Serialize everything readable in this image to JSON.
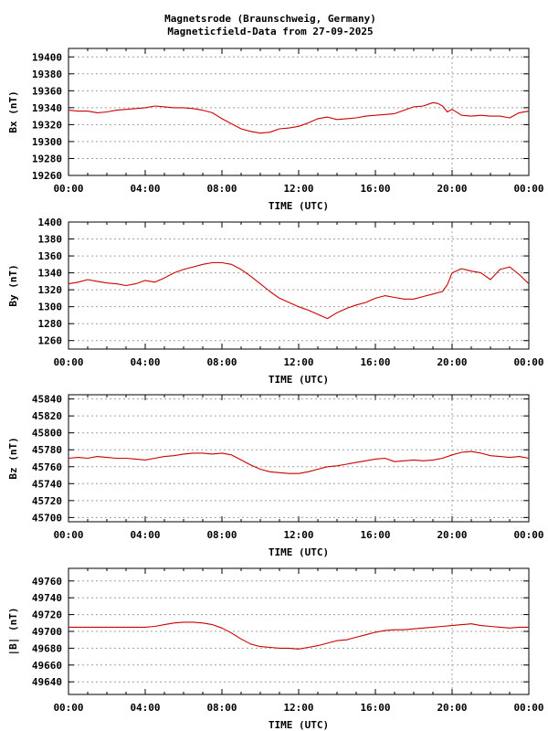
{
  "title_line1": "Magnetsrode (Braunschweig, Germany)",
  "title_line2": "Magneticfield-Data from 27-09-2025",
  "line_color": "#cc0000",
  "chart_data": [
    {
      "type": "line",
      "ylabel": "Bx (nT)",
      "xlabel": "TIME (UTC)",
      "xlim": [
        0,
        24
      ],
      "xticks": [
        "00:00",
        "04:00",
        "08:00",
        "12:00",
        "16:00",
        "20:00",
        "00:00"
      ],
      "ylim": [
        19260,
        19410
      ],
      "yticks": [
        19260,
        19280,
        19300,
        19320,
        19340,
        19360,
        19380,
        19400
      ],
      "x": [
        0,
        0.5,
        1,
        1.5,
        2,
        2.5,
        3,
        3.5,
        4,
        4.5,
        5,
        5.5,
        6,
        6.5,
        7,
        7.5,
        8,
        8.5,
        9,
        9.5,
        10,
        10.5,
        11,
        11.5,
        12,
        12.5,
        13,
        13.5,
        14,
        14.5,
        15,
        15.5,
        16,
        16.5,
        17,
        17.5,
        18,
        18.5,
        19,
        19.25,
        19.5,
        19.75,
        20,
        20.5,
        21,
        21.5,
        22,
        22.5,
        23,
        23.5,
        24
      ],
      "y": [
        19337,
        19336,
        19336,
        19334,
        19335,
        19337,
        19338,
        19339,
        19340,
        19342,
        19341,
        19340,
        19340,
        19339,
        19337,
        19334,
        19327,
        19321,
        19315,
        19312,
        19310,
        19311,
        19315,
        19316,
        19318,
        19322,
        19327,
        19329,
        19326,
        19327,
        19328,
        19330,
        19331,
        19332,
        19333,
        19337,
        19341,
        19342,
        19346,
        19345,
        19342,
        19335,
        19338,
        19331,
        19330,
        19331,
        19330,
        19330,
        19328,
        19334,
        19336
      ]
    },
    {
      "type": "line",
      "ylabel": "By (nT)",
      "xlabel": "TIME (UTC)",
      "xlim": [
        0,
        24
      ],
      "xticks": [
        "00:00",
        "04:00",
        "08:00",
        "12:00",
        "16:00",
        "20:00",
        "00:00"
      ],
      "ylim": [
        1250,
        1400
      ],
      "yticks": [
        1260,
        1280,
        1300,
        1320,
        1340,
        1360,
        1380,
        1400
      ],
      "x": [
        0,
        0.5,
        1,
        1.5,
        2,
        2.5,
        3,
        3.5,
        4,
        4.5,
        5,
        5.5,
        6,
        6.5,
        7,
        7.5,
        8,
        8.5,
        9,
        9.5,
        10,
        10.5,
        11,
        11.5,
        12,
        12.5,
        13,
        13.5,
        14,
        14.5,
        15,
        15.5,
        16,
        16.5,
        17,
        17.5,
        18,
        18.5,
        19,
        19.5,
        19.75,
        20,
        20.5,
        21,
        21.5,
        22,
        22.5,
        23,
        23.5,
        24
      ],
      "y": [
        1327,
        1329,
        1332,
        1330,
        1328,
        1327,
        1325,
        1327,
        1331,
        1329,
        1334,
        1340,
        1344,
        1347,
        1350,
        1352,
        1352,
        1350,
        1344,
        1336,
        1327,
        1318,
        1310,
        1305,
        1300,
        1296,
        1291,
        1286,
        1293,
        1298,
        1302,
        1305,
        1310,
        1313,
        1311,
        1309,
        1309,
        1312,
        1315,
        1318,
        1326,
        1340,
        1345,
        1342,
        1340,
        1332,
        1344,
        1347,
        1338,
        1327
      ]
    },
    {
      "type": "line",
      "ylabel": "Bz (nT)",
      "xlabel": "TIME (UTC)",
      "xlim": [
        0,
        24
      ],
      "xticks": [
        "00:00",
        "04:00",
        "08:00",
        "12:00",
        "16:00",
        "20:00",
        "00:00"
      ],
      "ylim": [
        45695,
        45845
      ],
      "yticks": [
        45700,
        45720,
        45740,
        45760,
        45780,
        45800,
        45820,
        45840
      ],
      "x": [
        0,
        0.5,
        1,
        1.5,
        2,
        2.5,
        3,
        3.5,
        4,
        4.5,
        5,
        5.5,
        6,
        6.5,
        7,
        7.5,
        8,
        8.5,
        9,
        9.5,
        10,
        10.5,
        11,
        11.5,
        12,
        12.5,
        13,
        13.5,
        14,
        14.5,
        15,
        15.5,
        16,
        16.5,
        17,
        17.5,
        18,
        18.5,
        19,
        19.5,
        20,
        20.5,
        21,
        21.5,
        22,
        22.5,
        23,
        23.5,
        24
      ],
      "y": [
        45770,
        45771,
        45770,
        45772,
        45771,
        45770,
        45770,
        45769,
        45768,
        45770,
        45772,
        45773,
        45775,
        45776,
        45776,
        45775,
        45776,
        45774,
        45768,
        45762,
        45757,
        45754,
        45753,
        45752,
        45752,
        45754,
        45757,
        45760,
        45761,
        45763,
        45765,
        45767,
        45769,
        45770,
        45766,
        45767,
        45768,
        45767,
        45768,
        45770,
        45774,
        45777,
        45778,
        45776,
        45773,
        45772,
        45771,
        45772,
        45770
      ]
    },
    {
      "type": "line",
      "ylabel": "|B| (nT)",
      "xlabel": "TIME (UTC)",
      "xlim": [
        0,
        24
      ],
      "xticks": [
        "00:00",
        "04:00",
        "08:00",
        "12:00",
        "16:00",
        "20:00",
        "00:00"
      ],
      "ylim": [
        49625,
        49775
      ],
      "yticks": [
        49640,
        49660,
        49680,
        49700,
        49720,
        49740,
        49760
      ],
      "x": [
        0,
        0.5,
        1,
        1.5,
        2,
        2.5,
        3,
        3.5,
        4,
        4.5,
        5,
        5.5,
        6,
        6.5,
        7,
        7.5,
        8,
        8.5,
        9,
        9.5,
        10,
        10.5,
        11,
        11.5,
        12,
        12.5,
        13,
        13.5,
        14,
        14.5,
        15,
        15.5,
        16,
        16.5,
        17,
        17.5,
        18,
        18.5,
        19,
        19.5,
        20,
        20.5,
        21,
        21.5,
        22,
        22.5,
        23,
        23.5,
        24
      ],
      "y": [
        49705,
        49705,
        49705,
        49705,
        49705,
        49705,
        49705,
        49705,
        49705,
        49706,
        49708,
        49710,
        49711,
        49711,
        49710,
        49708,
        49704,
        49698,
        49691,
        49685,
        49682,
        49681,
        49680,
        49680,
        49679,
        49681,
        49683,
        49686,
        49689,
        49690,
        49693,
        49696,
        49699,
        49701,
        49702,
        49702,
        49703,
        49704,
        49705,
        49706,
        49707,
        49708,
        49709,
        49707,
        49706,
        49705,
        49704,
        49705,
        49705
      ]
    }
  ]
}
